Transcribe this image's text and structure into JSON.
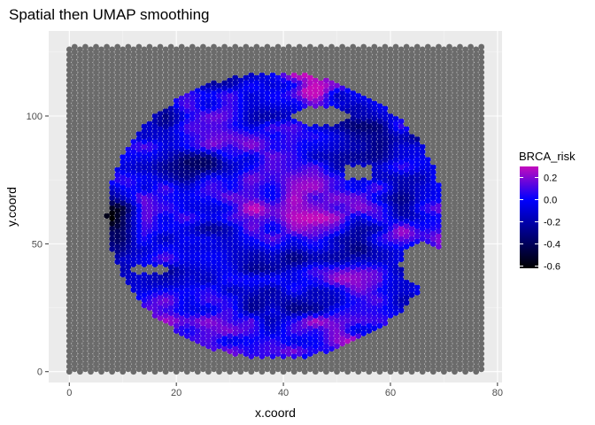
{
  "chart_data": {
    "type": "scatter",
    "title": "Spatial then UMAP smoothing",
    "xlabel": "x.coord",
    "ylabel": "y.coord",
    "xlim": [
      -3.85,
      80.85
    ],
    "ylim": [
      -4.25,
      133.25
    ],
    "x_ticks": [
      0,
      20,
      40,
      60,
      80
    ],
    "y_ticks": [
      0,
      50,
      100
    ],
    "x_tick_labels": [
      "0",
      "20",
      "40",
      "60",
      "80"
    ],
    "y_tick_labels": [
      "0",
      "50",
      "100"
    ],
    "grid": true,
    "panel_background": "#ebebeb",
    "background_spot_color": "#6b6b6b",
    "spot_grid": {
      "x_min": 0,
      "x_max": 77,
      "y_min": 1,
      "y_max": 127,
      "y_step": 2
    },
    "tissue_region": {
      "center_x": 38.5,
      "center_y": 61,
      "radius_x": 31.5,
      "radius_y": 56
    },
    "holes": [
      {
        "cx": 66,
        "cy": 42,
        "rx": 4,
        "ry": 9
      },
      {
        "cx": 47,
        "cy": 100,
        "rx": 5,
        "ry": 4
      },
      {
        "cx": 54,
        "cy": 78,
        "rx": 3,
        "ry": 3
      },
      {
        "cx": 15,
        "cy": 40,
        "rx": 3,
        "ry": 2
      }
    ],
    "legend": {
      "title": "BRCA_risk",
      "position": "right",
      "min": -0.62,
      "max": 0.3,
      "breaks": [
        0.2,
        0.0,
        -0.2,
        -0.4,
        -0.6
      ],
      "break_labels": [
        "0.2",
        "0.0",
        "-0.2",
        "-0.4",
        "-0.6"
      ],
      "colors": {
        "low": "#000000",
        "mid": "#0000ff",
        "high": "#c40bbc"
      }
    },
    "series": [
      {
        "values_description_none": true
      }
    ]
  }
}
